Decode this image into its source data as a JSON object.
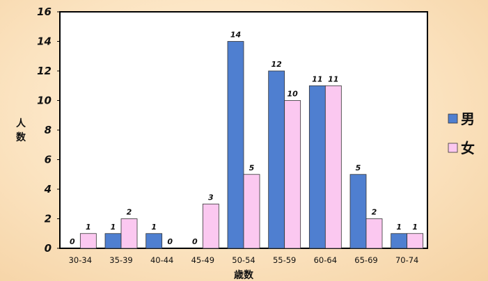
{
  "colors": {
    "male": "#4f7fd0",
    "female": "#fbc8f0",
    "plot_bg": "#ffffff",
    "axis": "#000000"
  },
  "chart_data": {
    "type": "bar",
    "categories": [
      "30-34",
      "35-39",
      "40-44",
      "45-49",
      "50-54",
      "55-59",
      "60-64",
      "65-69",
      "70-74"
    ],
    "series": [
      {
        "name": "男",
        "values": [
          0,
          1,
          1,
          0,
          14,
          12,
          11,
          5,
          1
        ]
      },
      {
        "name": "女",
        "values": [
          1,
          2,
          0,
          3,
          5,
          10,
          11,
          2,
          1
        ]
      }
    ],
    "value_labels": [
      [
        "0",
        "1",
        "1",
        "0",
        "14",
        "12",
        "11",
        "5",
        "1"
      ],
      [
        "1",
        "2",
        "0",
        "3",
        "5",
        "10",
        "11",
        "2",
        "1"
      ]
    ],
    "xlabel": "歳数",
    "ylabel": "人数",
    "ylim": [
      0,
      16
    ],
    "yticks": [
      0,
      2,
      4,
      6,
      8,
      10,
      12,
      14,
      16
    ],
    "grid": false,
    "legend": "right"
  }
}
